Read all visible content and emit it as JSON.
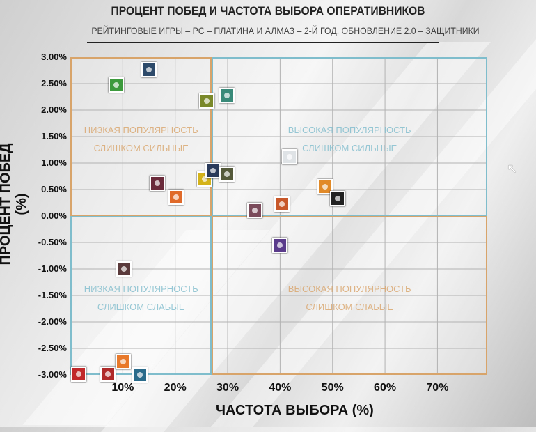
{
  "chart_data": {
    "type": "scatter",
    "title": "ПРОЦЕНТ ПОБЕД И ЧАСТОТА ВЫБОРА ОПЕРАТИВНИКОВ",
    "subtitle": "РЕЙТИНГОВЫЕ ИГРЫ – PC – ПЛАТИНА И АЛМАЗ – 2-Й ГОД, ОБНОВЛЕНИЕ 2.0 – ЗАЩИТНИКИ",
    "xlabel": "ЧАСТОТА ВЫБОРА (%)",
    "ylabel": "ПРОЦЕНТ ПОБЕД (%)",
    "xlim": [
      0,
      79.5
    ],
    "ylim": [
      -3.0,
      3.0
    ],
    "x_split": 27,
    "y_split": 0,
    "grid": true,
    "xticks": [
      "10%",
      "20%",
      "30%",
      "40%",
      "50%",
      "60%",
      "70%"
    ],
    "xtick_values": [
      10,
      20,
      30,
      40,
      50,
      60,
      70
    ],
    "yticks": [
      "3.00%",
      "2.50%",
      "2.00%",
      "1.50%",
      "1.00%",
      "0.50%",
      "0.00%",
      "-0.50%",
      "-1.00%",
      "-1.50%",
      "-2.00%",
      "-2.50%",
      "-3.00%"
    ],
    "ytick_values": [
      3,
      2.5,
      2,
      1.5,
      1,
      0.5,
      0,
      -0.5,
      -1,
      -1.5,
      -2,
      -2.5,
      -3
    ],
    "quadrants": {
      "top_left": [
        "НИЗКАЯ ПОПУЛЯРНОСТЬ",
        "СЛИШКОМ СИЛЬНЫЕ"
      ],
      "top_right": [
        "ВЫСОКАЯ ПОПУЛЯРНОСТЬ",
        "СЛИШКОМ СИЛЬНЫЕ"
      ],
      "bottom_left": [
        "НИЗКАЯ ПОПУЛЯРНОСТЬ",
        "СЛИШКОМ СЛАБЫЕ"
      ],
      "bottom_right": [
        "ВЫСОКАЯ ПОПУЛЯРНОСТЬ",
        "СЛИШКОМ СЛАБЫЕ"
      ]
    },
    "colors": {
      "orange": "#d9a46a",
      "blue": "#7fbccc",
      "axis": "#555555"
    },
    "points": [
      {
        "x": 8.8,
        "y": 2.47,
        "color": "#3c9a3c"
      },
      {
        "x": 15.0,
        "y": 2.76,
        "color": "#2e4a6a"
      },
      {
        "x": 26.0,
        "y": 2.17,
        "color": "#7a8a2a"
      },
      {
        "x": 29.9,
        "y": 2.28,
        "color": "#3a8a7a"
      },
      {
        "x": 41.8,
        "y": 1.12,
        "color": "#dfe3e6"
      },
      {
        "x": 16.6,
        "y": 0.62,
        "color": "#6a2a3a"
      },
      {
        "x": 20.2,
        "y": 0.36,
        "color": "#e06a2a"
      },
      {
        "x": 25.6,
        "y": 0.7,
        "color": "#d4b21a"
      },
      {
        "x": 27.2,
        "y": 0.86,
        "color": "#2a3a5a"
      },
      {
        "x": 29.9,
        "y": 0.79,
        "color": "#555a3a"
      },
      {
        "x": 48.6,
        "y": 0.55,
        "color": "#e08a2a"
      },
      {
        "x": 51.0,
        "y": 0.33,
        "color": "#222222"
      },
      {
        "x": 35.2,
        "y": 0.11,
        "color": "#7a4a5a"
      },
      {
        "x": 40.4,
        "y": 0.22,
        "color": "#c8582a"
      },
      {
        "x": 40.0,
        "y": -0.55,
        "color": "#5a3a8a"
      },
      {
        "x": 10.2,
        "y": -1.0,
        "color": "#5a3a3a"
      },
      {
        "x": 1.6,
        "y": -2.99,
        "color": "#c0282a"
      },
      {
        "x": 7.2,
        "y": -2.99,
        "color": "#b02a2a"
      },
      {
        "x": 10.1,
        "y": -2.75,
        "color": "#e8782a"
      },
      {
        "x": 13.3,
        "y": -3.0,
        "color": "#2a6a8a"
      }
    ]
  }
}
